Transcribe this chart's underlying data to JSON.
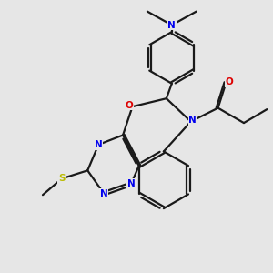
{
  "background_color": "#e6e6e6",
  "bond_color": "#1a1a1a",
  "nitrogen_color": "#0000ee",
  "oxygen_color": "#dd0000",
  "sulfur_color": "#bbbb00",
  "bond_width": 1.6,
  "figsize": [
    3.0,
    3.0
  ],
  "dpi": 100,
  "triazine_N_labels": [
    "N",
    "N",
    "N"
  ],
  "oxazepine_O_label": "O",
  "oxazepine_N_label": "N",
  "sulfur_label": "S",
  "oxygen_label": "O",
  "nme2_label": "N"
}
